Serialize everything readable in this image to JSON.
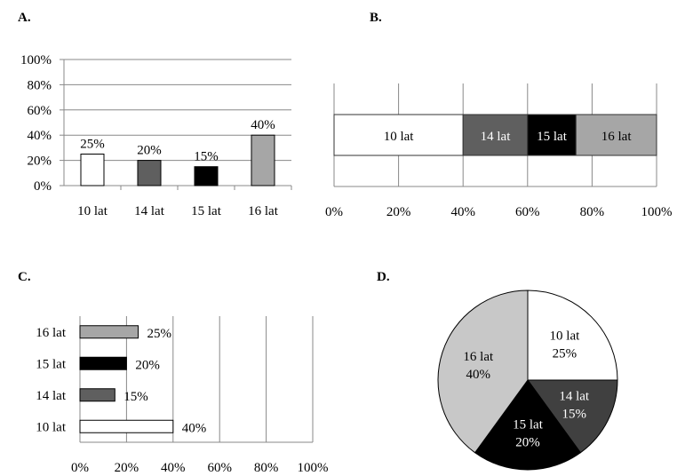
{
  "colors": {
    "10 lat": "#ffffff",
    "14 lat": "#5f5f5f",
    "15 lat": "#000000",
    "16 lat": "#a6a6a6",
    "pie_14": "#404040",
    "pie_16": "#c8c8c8"
  },
  "chart_data": [
    {
      "panel": "A.",
      "type": "bar",
      "orientation": "vertical",
      "categories": [
        "10 lat",
        "14 lat",
        "15 lat",
        "16 lat"
      ],
      "values": [
        25,
        20,
        15,
        40
      ],
      "value_labels": [
        "25%",
        "20%",
        "15%",
        "40%"
      ],
      "ylim": [
        0,
        100
      ],
      "ticks": [
        "0%",
        "20%",
        "40%",
        "60%",
        "80%",
        "100%"
      ],
      "grid": true
    },
    {
      "panel": "B.",
      "type": "bar",
      "orientation": "stacked-horizontal",
      "categories": [
        "10 lat",
        "14 lat",
        "15 lat",
        "16 lat"
      ],
      "values": [
        40,
        20,
        15,
        25
      ],
      "xlim": [
        0,
        100
      ],
      "ticks": [
        "0%",
        "20%",
        "40%",
        "60%",
        "80%",
        "100%"
      ],
      "grid": true
    },
    {
      "panel": "C.",
      "type": "bar",
      "orientation": "horizontal",
      "categories": [
        "16 lat",
        "15 lat",
        "14 lat",
        "10 lat"
      ],
      "values": [
        25,
        20,
        15,
        40
      ],
      "value_labels": [
        "25%",
        "20%",
        "15%",
        "40%"
      ],
      "xlim": [
        0,
        100
      ],
      "ticks": [
        "0%",
        "20%",
        "40%",
        "60%",
        "80%",
        "100%"
      ],
      "grid": true
    },
    {
      "panel": "D.",
      "type": "pie",
      "categories": [
        "10 lat",
        "14 lat",
        "15 lat",
        "16 lat"
      ],
      "values": [
        25,
        15,
        20,
        40
      ],
      "value_labels": [
        "25%",
        "15%",
        "20%",
        "40%"
      ]
    }
  ]
}
